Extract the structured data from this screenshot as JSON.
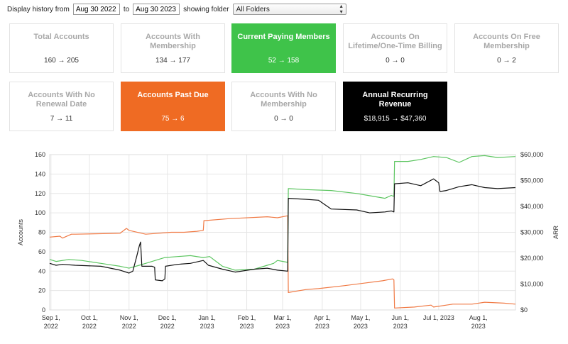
{
  "filter": {
    "label_from": "Display history from",
    "date_from": "Aug 30 2022",
    "label_to": "to",
    "date_to": "Aug 30 2023",
    "label_folder": "showing folder",
    "folder_selected": "All Folders",
    "select_icon": "up-down-arrows-icon"
  },
  "cards": [
    {
      "title": "Total Accounts",
      "value": "160 → 205"
    },
    {
      "title": "Accounts With Membership",
      "value": "134 → 177"
    },
    {
      "title": "Current Paying Members",
      "value": "52 → 158",
      "color": "#3fc34a"
    },
    {
      "title": "Accounts On Lifetime/One-Time Billing",
      "value": "0 → 0"
    },
    {
      "title": "Accounts On Free Membership",
      "value": "0 → 2"
    },
    {
      "title": "Accounts With No Renewal Date",
      "value": "7 → 11"
    },
    {
      "title": "Accounts Past Due",
      "value": "75 → 6",
      "color": "#ef6b23"
    },
    {
      "title": "Accounts With No Membership",
      "value": "0 → 0"
    },
    {
      "title": "Annual Recurring Revenue",
      "value": "$18,915 → $47,360",
      "color": "#000000"
    }
  ],
  "chart_data": {
    "type": "line",
    "ylabel": "Accounts",
    "y2label": "ARR",
    "ylim": [
      0,
      160
    ],
    "y2lim": [
      0,
      60000
    ],
    "yticks": [
      "0",
      "20",
      "40",
      "60",
      "80",
      "100",
      "120",
      "140",
      "160"
    ],
    "y2ticks": [
      "$0",
      "$10,000",
      "$20,000",
      "$30,000",
      "$40,000",
      "$50,000",
      "$60,000"
    ],
    "xlim": [
      0,
      364
    ],
    "xticks": [
      {
        "day": 1,
        "l1": "Sep 1,",
        "l2": "2022"
      },
      {
        "day": 31,
        "l1": "Oct 1,",
        "l2": "2022"
      },
      {
        "day": 62,
        "l1": "Nov 1,",
        "l2": "2022"
      },
      {
        "day": 92,
        "l1": "Dec 1,",
        "l2": "2022"
      },
      {
        "day": 123,
        "l1": "Jan 1,",
        "l2": "2023"
      },
      {
        "day": 154,
        "l1": "Feb 1,",
        "l2": "2023"
      },
      {
        "day": 182,
        "l1": "Mar 1,",
        "l2": "2023"
      },
      {
        "day": 213,
        "l1": "Apr 1,",
        "l2": "2023"
      },
      {
        "day": 243,
        "l1": "May 1,",
        "l2": "2023"
      },
      {
        "day": 274,
        "l1": "Jun 1,",
        "l2": "2023"
      },
      {
        "day": 304,
        "l1": "Jul 1, 2023",
        "l2": ""
      },
      {
        "day": 335,
        "l1": "Aug 1,",
        "l2": "2023"
      }
    ],
    "series": [
      {
        "name": "Accounts Past Due",
        "color": "#f07a45",
        "x": [
          0,
          8,
          10,
          17,
          20,
          55,
          60,
          62,
          75,
          95,
          105,
          115,
          120,
          120.5,
          140,
          170,
          178,
          186,
          186.5,
          200,
          210,
          230,
          260,
          268,
          269,
          269.5,
          285,
          298,
          300,
          315,
          330,
          340,
          355,
          364
        ],
        "y": [
          75,
          76,
          74,
          78,
          78,
          79,
          84,
          82,
          78,
          80,
          80,
          81,
          82,
          92,
          94,
          96,
          95,
          97,
          18,
          21,
          22,
          25,
          30,
          32,
          31,
          2,
          3,
          5,
          3,
          6,
          6,
          8,
          7,
          6
        ]
      },
      {
        "name": "Current Paying Members",
        "color": "#5cc560",
        "x": [
          0,
          5,
          15,
          25,
          45,
          55,
          62,
          70,
          75,
          80,
          90,
          100,
          110,
          120,
          125,
          135,
          145,
          160,
          170,
          175,
          178,
          186,
          186.5,
          200,
          220,
          240,
          262,
          267,
          269,
          269.5,
          280,
          290,
          300,
          310,
          320,
          330,
          340,
          350,
          364
        ],
        "y": [
          52,
          50,
          52,
          51,
          47,
          45,
          43,
          46,
          48,
          50,
          54,
          55,
          56,
          54,
          55,
          45,
          41,
          42,
          46,
          48,
          51,
          49,
          125,
          124,
          123,
          120,
          115,
          118,
          117,
          153,
          153,
          155,
          158,
          157,
          152,
          158,
          159,
          157,
          158
        ]
      },
      {
        "name": "Annual Recurring Revenue",
        "color": "#111111",
        "x": [
          0,
          5,
          10,
          20,
          40,
          55,
          62,
          65,
          68,
          70,
          71,
          72,
          76,
          80,
          82,
          82.5,
          88,
          90,
          90.5,
          100,
          110,
          120,
          124,
          135,
          145,
          160,
          170,
          178,
          186,
          186.5,
          200,
          210,
          220,
          240,
          250,
          262,
          267,
          269,
          269.5,
          280,
          290,
          300,
          304,
          305,
          310,
          320,
          330,
          340,
          350,
          364
        ],
        "y": [
          48,
          46,
          47,
          46,
          45,
          41,
          38,
          40,
          55,
          66,
          70,
          45,
          45,
          45,
          44,
          31,
          30,
          32,
          45,
          47,
          48,
          51,
          46,
          42,
          39,
          42,
          43,
          41,
          40,
          115,
          114,
          113,
          104,
          103,
          100,
          101,
          102,
          101,
          130,
          131,
          128,
          135,
          131,
          122,
          123,
          127,
          129,
          126,
          125,
          126
        ]
      }
    ]
  }
}
